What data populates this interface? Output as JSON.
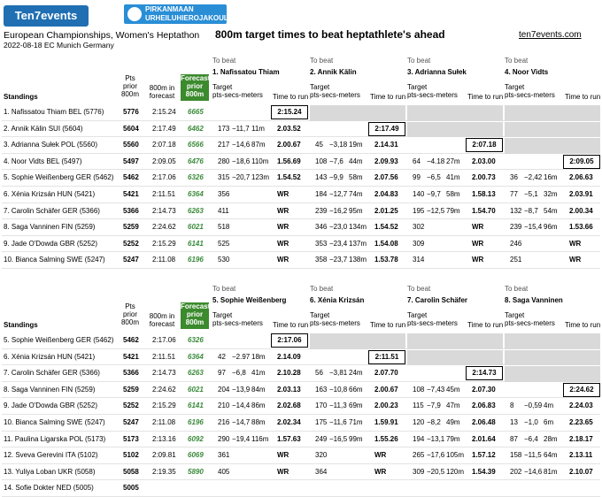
{
  "logo_left": "Ten7events",
  "logo_right": {
    "line1": "PIRKANMAAN",
    "line2": "URHEILUHIEROJAKOULU"
  },
  "event_title": "European Championships, Women's Heptathon",
  "event_sub": "2022-08-18 EC Munich Germany",
  "main_title": "800m target times to beat heptathlete's ahead",
  "site": "ten7events.com",
  "headers": {
    "standings": "Standings",
    "pts_prior": [
      "Pts",
      "prior",
      "800m"
    ],
    "t800": [
      "800m in",
      "forecast"
    ],
    "forecast": [
      "Forecast",
      "prior",
      "800m"
    ],
    "to_beat": "To beat",
    "target": "Target",
    "pts_secs": "pts-secs-meters",
    "ttr": "Time to run"
  },
  "table1": {
    "athletes": [
      "1. Nafissatou Thiam",
      "2. Annik Kälin",
      "3. Adrianna Sułek",
      "4. Noor Vidts"
    ],
    "rows": [
      {
        "name": "1. Nafissatou Thiam BEL (5776)",
        "pts": "5776",
        "t": "2:15.24",
        "fc": "6665",
        "c": [
          [
            "",
            "",
            ""
          ],
          [
            "",
            "",
            ""
          ],
          [
            "",
            "",
            ""
          ],
          [
            "",
            "",
            ""
          ]
        ]
      },
      {
        "name": "2. Annik Kälin SUI (5604)",
        "pts": "5604",
        "t": "2:17.49",
        "fc": "6462",
        "c": [
          [
            "173",
            "−11,7",
            "11m",
            "2.03.52"
          ],
          [
            "",
            "",
            ""
          ],
          [
            "",
            "",
            ""
          ],
          [
            "",
            "",
            ""
          ]
        ]
      },
      {
        "name": "3. Adrianna Sułek POL (5560)",
        "pts": "5560",
        "t": "2:07.18",
        "fc": "6566",
        "c": [
          [
            "217",
            "−14,6",
            "87m",
            "2.00.67"
          ],
          [
            "45",
            "−3,18",
            "19m",
            "2.14.31"
          ],
          [
            "",
            "",
            ""
          ],
          [
            "",
            "",
            ""
          ]
        ]
      },
      {
        "name": "4. Noor Vidts BEL (5497)",
        "pts": "5497",
        "t": "2:09.05",
        "fc": "6476",
        "c": [
          [
            "280",
            "−18,6",
            "110m",
            "1.56.69"
          ],
          [
            "108",
            "−7,6",
            "44m",
            "2.09.93"
          ],
          [
            "64",
            "−4.18",
            "27m",
            "2.03.00"
          ],
          [
            "",
            "",
            ""
          ]
        ]
      },
      {
        "name": "5. Sophie Weißenberg GER (5462)",
        "pts": "5462",
        "t": "2:17.06",
        "fc": "6326",
        "c": [
          [
            "315",
            "−20,7",
            "123m",
            "1.54.52"
          ],
          [
            "143",
            "−9,9",
            "58m",
            "2.07.56"
          ],
          [
            "99",
            "−6,5",
            "41m",
            "2.00.73"
          ],
          [
            "36",
            "−2,42",
            "16m",
            "2.06.63"
          ]
        ]
      },
      {
        "name": "6. Xénia Krizsán HUN (5421)",
        "pts": "5421",
        "t": "2:11.51",
        "fc": "6364",
        "c": [
          [
            "356",
            "",
            "",
            "WR"
          ],
          [
            "184",
            "−12,7",
            "74m",
            "2.04.83"
          ],
          [
            "140",
            "−9,7",
            "58m",
            "1.58.13"
          ],
          [
            "77",
            "−5,1",
            "32m",
            "2.03.91"
          ]
        ]
      },
      {
        "name": "7. Carolin Schäfer GER (5366)",
        "pts": "5366",
        "t": "2:14.73",
        "fc": "6263",
        "c": [
          [
            "411",
            "",
            "",
            "WR"
          ],
          [
            "239",
            "−16,2",
            "95m",
            "2.01.25"
          ],
          [
            "195",
            "−12,5",
            "79m",
            "1.54.70"
          ],
          [
            "132",
            "−8,7",
            "54m",
            "2.00.34"
          ]
        ]
      },
      {
        "name": "8. Saga Vanninen FIN (5259)",
        "pts": "5259",
        "t": "2:24.62",
        "fc": "6021",
        "c": [
          [
            "518",
            "",
            "",
            "WR"
          ],
          [
            "346",
            "−23,0",
            "134m",
            "1.54.52"
          ],
          [
            "302",
            "",
            "",
            "WR"
          ],
          [
            "239",
            "−15,4",
            "96m",
            "1.53.66"
          ]
        ]
      },
      {
        "name": "9. Jade O'Dowda GBR (5252)",
        "pts": "5252",
        "t": "2:15.29",
        "fc": "6141",
        "c": [
          [
            "525",
            "",
            "",
            "WR"
          ],
          [
            "353",
            "−23,4",
            "137m",
            "1.54.08"
          ],
          [
            "309",
            "",
            "",
            "WR"
          ],
          [
            "246",
            "",
            "",
            "WR"
          ]
        ]
      },
      {
        "name": "10. Bianca Salming SWE (5247)",
        "pts": "5247",
        "t": "2:11.08",
        "fc": "6196",
        "c": [
          [
            "530",
            "",
            "",
            "WR"
          ],
          [
            "358",
            "−23,7",
            "138m",
            "1.53.78"
          ],
          [
            "314",
            "",
            "",
            "WR"
          ],
          [
            "251",
            "",
            "",
            "WR"
          ]
        ]
      }
    ],
    "hl": [
      "2:15.24",
      "2:17.49",
      "2:07.18",
      "2:09.05"
    ]
  },
  "table2": {
    "athletes": [
      "5. Sophie Weißenberg",
      "6. Xénia Krizsán",
      "7. Carolin Schäfer",
      "8. Saga Vanninen"
    ],
    "rows": [
      {
        "name": "5. Sophie Weißenberg GER (5462)",
        "pts": "5462",
        "t": "2:17.06",
        "fc": "6326",
        "c": [
          [
            "",
            "",
            ""
          ],
          [
            "",
            "",
            ""
          ],
          [
            "",
            "",
            ""
          ],
          [
            "",
            "",
            ""
          ]
        ]
      },
      {
        "name": "6. Xénia Krizsán HUN (5421)",
        "pts": "5421",
        "t": "2:11.51",
        "fc": "6364",
        "c": [
          [
            "42",
            "−2.97",
            "18m",
            "2.14.09"
          ],
          [
            "",
            "",
            ""
          ],
          [
            "",
            "",
            ""
          ],
          [
            "",
            "",
            ""
          ]
        ]
      },
      {
        "name": "7. Carolin Schäfer GER (5366)",
        "pts": "5366",
        "t": "2:14.73",
        "fc": "6263",
        "c": [
          [
            "97",
            "−6,8",
            "41m",
            "2.10.28"
          ],
          [
            "56",
            "−3,81",
            "24m",
            "2.07.70"
          ],
          [
            "",
            "",
            ""
          ],
          [
            "",
            "",
            ""
          ]
        ]
      },
      {
        "name": "8. Saga Vanninen FIN (5259)",
        "pts": "5259",
        "t": "2:24.62",
        "fc": "6021",
        "c": [
          [
            "204",
            "−13,9",
            "84m",
            "2.03.13"
          ],
          [
            "163",
            "−10,8",
            "66m",
            "2.00.67"
          ],
          [
            "108",
            "−7,43",
            "45m",
            "2.07.30"
          ],
          [
            "",
            "",
            ""
          ]
        ]
      },
      {
        "name": "9. Jade O'Dowda GBR (5252)",
        "pts": "5252",
        "t": "2:15.29",
        "fc": "6141",
        "c": [
          [
            "210",
            "−14,4",
            "86m",
            "2.02.68"
          ],
          [
            "170",
            "−11,3",
            "69m",
            "2.00.23"
          ],
          [
            "115",
            "−7,9",
            "47m",
            "2.06.83"
          ],
          [
            "8",
            "−0,59",
            "4m",
            "2.24.03"
          ]
        ]
      },
      {
        "name": "10. Bianca Salming SWE (5247)",
        "pts": "5247",
        "t": "2:11.08",
        "fc": "6196",
        "c": [
          [
            "216",
            "−14,7",
            "88m",
            "2.02.34"
          ],
          [
            "175",
            "−11,6",
            "71m",
            "1.59.91"
          ],
          [
            "120",
            "−8,2",
            "49m",
            "2.06.48"
          ],
          [
            "13",
            "−1,0",
            "6m",
            "2.23.65"
          ]
        ]
      },
      {
        "name": "11. Paulina Ligarska POL (5173)",
        "pts": "5173",
        "t": "2:13.16",
        "fc": "6092",
        "c": [
          [
            "290",
            "−19,4",
            "116m",
            "1.57.63"
          ],
          [
            "249",
            "−16,5",
            "99m",
            "1.55.26"
          ],
          [
            "194",
            "−13,1",
            "79m",
            "2.01.64"
          ],
          [
            "87",
            "−6,4",
            "28m",
            "2.18.17"
          ]
        ]
      },
      {
        "name": "12. Sveva Gerevini ITA (5102)",
        "pts": "5102",
        "t": "2:09.81",
        "fc": "6069",
        "c": [
          [
            "361",
            "",
            "",
            "WR"
          ],
          [
            "320",
            "",
            "",
            "WR"
          ],
          [
            "265",
            "−17,6",
            "105m",
            "1.57.12"
          ],
          [
            "158",
            "−11,5",
            "64m",
            "2.13.11"
          ]
        ]
      },
      {
        "name": "13. Yuliya Loban UKR (5058)",
        "pts": "5058",
        "t": "2:19.35",
        "fc": "5890",
        "c": [
          [
            "405",
            "",
            "",
            "WR"
          ],
          [
            "364",
            "",
            "",
            "WR"
          ],
          [
            "309",
            "−20,5",
            "120m",
            "1.54.39"
          ],
          [
            "202",
            "−14,6",
            "81m",
            "2.10.07"
          ]
        ]
      },
      {
        "name": "14. Sofie Dokter NED (5005)",
        "pts": "5005",
        "t": "",
        "fc": "",
        "c": [
          [
            "",
            "",
            "",
            ""
          ],
          [
            "",
            "",
            "",
            ""
          ],
          [
            "",
            "",
            "",
            ""
          ],
          [
            "",
            "",
            "",
            ""
          ]
        ]
      }
    ],
    "hl": [
      "2:17.06",
      "2:11.51",
      "2:14.73",
      "2:24.62"
    ]
  }
}
